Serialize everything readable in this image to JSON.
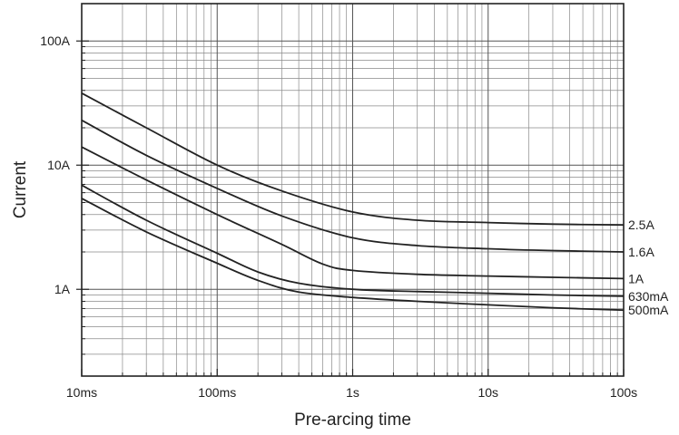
{
  "chart_data": {
    "type": "line",
    "title": "",
    "xlabel": "Pre-arcing time",
    "ylabel": "Current",
    "x_scale": "log",
    "y_scale": "log",
    "x_unit": "s",
    "y_unit": "A",
    "xlim": [
      0.01,
      100
    ],
    "ylim": [
      0.2,
      200
    ],
    "grid": true,
    "x_ticks": [
      {
        "value": 0.01,
        "label": "10ms"
      },
      {
        "value": 0.1,
        "label": "100ms"
      },
      {
        "value": 1,
        "label": "1s"
      },
      {
        "value": 10,
        "label": "10s"
      },
      {
        "value": 100,
        "label": "100s"
      }
    ],
    "y_ticks": [
      {
        "value": 1,
        "label": "1A"
      },
      {
        "value": 10,
        "label": "10A"
      },
      {
        "value": 100,
        "label": "100A"
      }
    ],
    "line_color": "#222222",
    "grid_color": "#8a8a8a",
    "series": [
      {
        "name": "2.5A",
        "x": [
          0.01,
          0.03,
          0.1,
          0.3,
          1,
          3,
          10,
          30,
          100
        ],
        "y": [
          38,
          20,
          10,
          6.2,
          4.2,
          3.6,
          3.45,
          3.35,
          3.3
        ]
      },
      {
        "name": "1.6A",
        "x": [
          0.01,
          0.03,
          0.1,
          0.3,
          1,
          3,
          10,
          30,
          100
        ],
        "y": [
          23,
          12,
          6.5,
          3.9,
          2.6,
          2.25,
          2.12,
          2.05,
          2.0
        ]
      },
      {
        "name": "1A",
        "x": [
          0.01,
          0.03,
          0.1,
          0.3,
          0.6,
          1,
          3,
          10,
          30,
          100
        ],
        "y": [
          14,
          7.6,
          4.0,
          2.3,
          1.6,
          1.42,
          1.32,
          1.28,
          1.25,
          1.22
        ]
      },
      {
        "name": "630mA",
        "x": [
          0.01,
          0.03,
          0.1,
          0.2,
          0.4,
          1,
          3,
          10,
          30,
          100
        ],
        "y": [
          6.9,
          3.6,
          1.95,
          1.38,
          1.12,
          1.0,
          0.96,
          0.93,
          0.9,
          0.88
        ]
      },
      {
        "name": "500mA",
        "x": [
          0.01,
          0.03,
          0.1,
          0.2,
          0.4,
          1,
          3,
          10,
          30,
          100
        ],
        "y": [
          5.4,
          2.9,
          1.62,
          1.18,
          0.95,
          0.86,
          0.8,
          0.75,
          0.71,
          0.68
        ]
      }
    ]
  }
}
